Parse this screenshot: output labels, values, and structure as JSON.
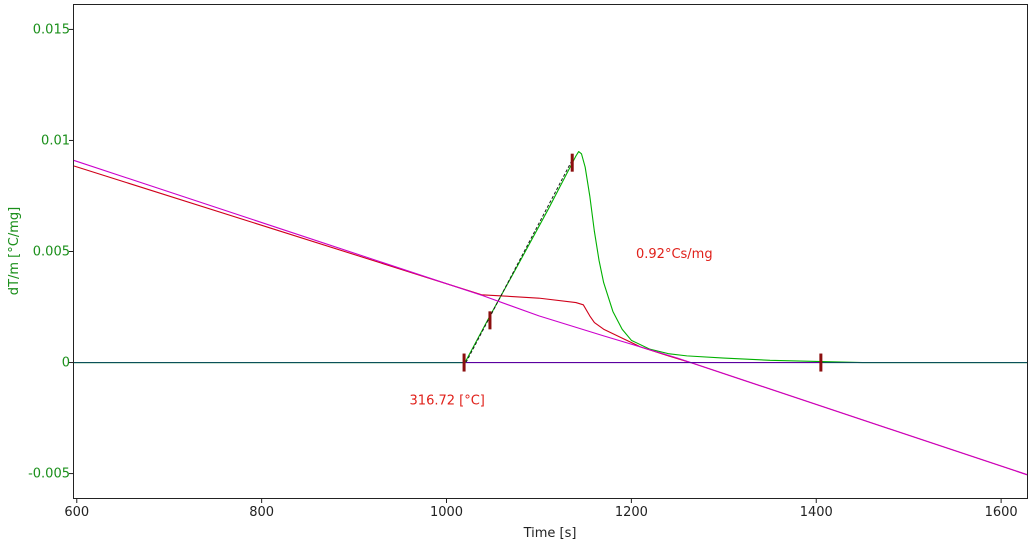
{
  "chart_data": {
    "type": "line",
    "title": "",
    "xlabel": "Time [s]",
    "ylabel": "dT/m  [°C/mg]",
    "xlim": [
      597,
      1628
    ],
    "ylim": [
      -0.0061,
      0.0161
    ],
    "x_ticks": [
      {
        "value": 600,
        "label": "600"
      },
      {
        "value": 800,
        "label": "800"
      },
      {
        "value": 1000,
        "label": "1000"
      },
      {
        "value": 1200,
        "label": "1200"
      },
      {
        "value": 1400,
        "label": "1400"
      },
      {
        "value": 1600,
        "label": "1600"
      }
    ],
    "y_ticks": [
      {
        "value": 0.015,
        "label": "0.015"
      },
      {
        "value": 0.01,
        "label": "0.01"
      },
      {
        "value": 0.005,
        "label": "0.005"
      },
      {
        "value": 0,
        "label": "0"
      },
      {
        "value": -0.005,
        "label": "-0.005"
      }
    ],
    "grid": false,
    "series": [
      {
        "color": "#00b000",
        "width": 1.1,
        "points": [
          [
            597,
            0
          ],
          [
            1020,
            0
          ],
          [
            1047,
            0.0021
          ],
          [
            1080,
            0.0046
          ],
          [
            1110,
            0.0069
          ],
          [
            1135,
            0.0089
          ],
          [
            1140,
            0.0093
          ],
          [
            1143,
            0.0095
          ],
          [
            1146,
            0.0094
          ],
          [
            1150,
            0.0088
          ],
          [
            1155,
            0.0075
          ],
          [
            1160,
            0.0059
          ],
          [
            1165,
            0.0046
          ],
          [
            1170,
            0.0036
          ],
          [
            1180,
            0.0023
          ],
          [
            1190,
            0.0015
          ],
          [
            1200,
            0.001
          ],
          [
            1220,
            0.0006
          ],
          [
            1240,
            0.0004
          ],
          [
            1260,
            0.0003
          ],
          [
            1300,
            0.0002
          ],
          [
            1350,
            0.0001
          ],
          [
            1400,
            5e-05
          ],
          [
            1450,
            0
          ],
          [
            1628,
            0
          ]
        ]
      },
      {
        "color": "#d0001a",
        "width": 1.1,
        "points": [
          [
            597,
            0.00885
          ],
          [
            1038,
            0.00305
          ],
          [
            1060,
            0.003
          ],
          [
            1100,
            0.0029
          ],
          [
            1140,
            0.0027
          ],
          [
            1148,
            0.0026
          ],
          [
            1155,
            0.0021
          ],
          [
            1160,
            0.0018
          ],
          [
            1170,
            0.0015
          ],
          [
            1190,
            0.0011
          ],
          [
            1210,
            0.0007
          ],
          [
            1240,
            0.0003
          ],
          [
            1264,
            0
          ],
          [
            1628,
            -0.00505
          ]
        ]
      },
      {
        "color": "#cc00cc",
        "width": 1.1,
        "points": [
          [
            597,
            0.0091
          ],
          [
            1040,
            0.003
          ],
          [
            1100,
            0.0021
          ],
          [
            1170,
            0.0012
          ],
          [
            1250,
            0.0002
          ],
          [
            1264,
            0
          ],
          [
            1628,
            -0.00505
          ]
        ]
      },
      {
        "color": "#1a1a1a",
        "width": 1.0,
        "dash": "3,2",
        "points": [
          [
            1021,
            0
          ],
          [
            1137,
            0.0092
          ]
        ]
      },
      {
        "color": "#5a00a0",
        "width": 1.2,
        "points": [
          [
            1021,
            0
          ],
          [
            1404,
            0
          ]
        ]
      },
      {
        "color": "#0b4f5a",
        "width": 1.2,
        "points": [
          [
            597,
            0
          ],
          [
            1021,
            0
          ]
        ]
      },
      {
        "color": "#0b4f5a",
        "width": 1.2,
        "points": [
          [
            1404,
            0
          ],
          [
            1628,
            0
          ]
        ]
      }
    ],
    "markers": [
      {
        "x": 1019,
        "y": 0
      },
      {
        "x": 1047,
        "y": 0.0019
      },
      {
        "x": 1136,
        "y": 0.009
      },
      {
        "x": 1405,
        "y": 0
      }
    ],
    "annotations": [
      {
        "text": "0.92°Cs/mg",
        "x": 1205,
        "y": 0.0047
      },
      {
        "text": "316.72 [°C]",
        "x": 960,
        "y": -0.0019
      }
    ]
  }
}
